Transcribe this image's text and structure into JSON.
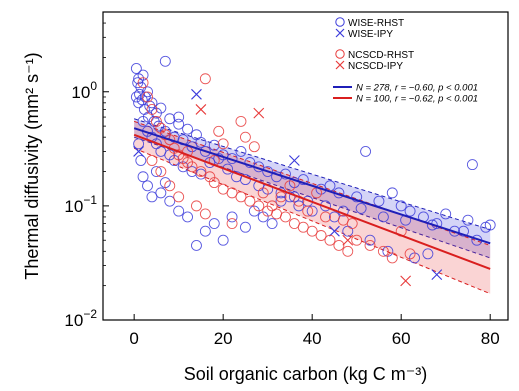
{
  "chart_data": {
    "type": "scatter",
    "xlabel": "Soil organic carbon (kg C m⁻³)",
    "ylabel": "Thermal diffusivity (mm² s⁻¹)",
    "xlim": [
      -7,
      84
    ],
    "ylim": [
      0.01,
      5
    ],
    "yscale": "log",
    "xticks": [
      0,
      20,
      40,
      60,
      80
    ],
    "yticks": [
      0.01,
      0.1,
      1
    ],
    "ytick_labels": [
      [
        "10",
        "−2"
      ],
      [
        "10",
        "−1"
      ],
      [
        "10",
        "0"
      ]
    ],
    "legend": {
      "placement": "top-right",
      "markers": [
        {
          "label": "WISE-RHST",
          "marker": "circle",
          "color": "#3b3bdb"
        },
        {
          "label": "WISE-IPY",
          "marker": "cross",
          "color": "#3b3bdb"
        },
        {
          "label": "NCSCD-RHST",
          "marker": "circle",
          "color": "#e83b3b"
        },
        {
          "label": "NCSCD-IPY",
          "marker": "cross",
          "color": "#e83b3b"
        }
      ],
      "lines": [
        {
          "label": "N = 278, r = −0.60, p < 0.001",
          "color": "#1f1fb8"
        },
        {
          "label": "N = 100, r = −0.62, p < 0.001",
          "color": "#d91f1f"
        }
      ]
    },
    "series": [
      {
        "name": "WISE-RHST",
        "marker": "circle",
        "color": "#3b3bdb",
        "points": [
          [
            0.5,
            1.6
          ],
          [
            0.8,
            1.2
          ],
          [
            1,
            1.3
          ],
          [
            1.2,
            0.95
          ],
          [
            1.5,
            1.1
          ],
          [
            1.8,
            0.85
          ],
          [
            2,
            1.4
          ],
          [
            2.3,
            0.7
          ],
          [
            2.5,
            0.9
          ],
          [
            3,
            1.0
          ],
          [
            3.2,
            0.6
          ],
          [
            3.5,
            0.75
          ],
          [
            4,
            0.8
          ],
          [
            4.5,
            0.55
          ],
          [
            5,
            0.65
          ],
          [
            5.5,
            0.5
          ],
          [
            6,
            0.72
          ],
          [
            7,
            0.45
          ],
          [
            8,
            0.58
          ],
          [
            9,
            0.4
          ],
          [
            10,
            0.52
          ],
          [
            11,
            0.38
          ],
          [
            12,
            0.47
          ],
          [
            13,
            0.33
          ],
          [
            14,
            0.42
          ],
          [
            15,
            0.36
          ],
          [
            16,
            0.3
          ],
          [
            18,
            0.34
          ],
          [
            20,
            0.28
          ],
          [
            22,
            0.26
          ],
          [
            24,
            0.3
          ],
          [
            26,
            0.24
          ],
          [
            28,
            0.22
          ],
          [
            30,
            0.2
          ],
          [
            32,
            0.18
          ],
          [
            34,
            0.19
          ],
          [
            36,
            0.16
          ],
          [
            38,
            0.17
          ],
          [
            42,
            0.14
          ],
          [
            44,
            0.15
          ],
          [
            46,
            0.13
          ],
          [
            50,
            0.12
          ],
          [
            52,
            0.3
          ],
          [
            55,
            0.11
          ],
          [
            58,
            0.13
          ],
          [
            60,
            0.1
          ],
          [
            62,
            0.09
          ],
          [
            65,
            0.08
          ],
          [
            68,
            0.07
          ],
          [
            70,
            0.085
          ],
          [
            72,
            0.06
          ],
          [
            75,
            0.075
          ],
          [
            77,
            0.05
          ],
          [
            79,
            0.065
          ],
          [
            1,
            0.35
          ],
          [
            1.5,
            0.25
          ],
          [
            2,
            0.18
          ],
          [
            3,
            0.15
          ],
          [
            4,
            0.12
          ],
          [
            5,
            0.2
          ],
          [
            6,
            0.13
          ],
          [
            7,
            0.16
          ],
          [
            8,
            0.11
          ],
          [
            10,
            0.09
          ],
          [
            12,
            0.08
          ],
          [
            14,
            0.045
          ],
          [
            16,
            0.06
          ],
          [
            18,
            0.07
          ],
          [
            20,
            0.05
          ],
          [
            22,
            0.08
          ],
          [
            25,
            0.065
          ],
          [
            27,
            0.09
          ],
          [
            29,
            0.08
          ],
          [
            31,
            0.07
          ],
          [
            33,
            0.11
          ],
          [
            35,
            0.12
          ],
          [
            37,
            0.1
          ],
          [
            40,
            0.09
          ],
          [
            45,
            0.08
          ],
          [
            48,
            0.06
          ],
          [
            53,
            0.05
          ],
          [
            57,
            0.04
          ],
          [
            63,
            0.035
          ],
          [
            66,
            0.038
          ],
          [
            0.5,
            0.9
          ],
          [
            1,
            0.8
          ],
          [
            2,
            0.55
          ],
          [
            3,
            0.45
          ],
          [
            4,
            0.4
          ],
          [
            5,
            0.35
          ],
          [
            6,
            0.3
          ],
          [
            7,
            1.85
          ],
          [
            8,
            0.28
          ],
          [
            9,
            0.25
          ],
          [
            10,
            0.6
          ],
          [
            11,
            0.22
          ],
          [
            13,
            0.2
          ],
          [
            15,
            0.19
          ],
          [
            17,
            0.24
          ],
          [
            19,
            0.26
          ],
          [
            21,
            0.21
          ],
          [
            23,
            0.18
          ],
          [
            25,
            0.17
          ],
          [
            28,
            0.15
          ],
          [
            30,
            0.14
          ],
          [
            33,
            0.13
          ],
          [
            36,
            0.12
          ],
          [
            39,
            0.11
          ],
          [
            43,
            0.1
          ],
          [
            47,
            0.09
          ],
          [
            51,
            0.095
          ],
          [
            56,
            0.08
          ],
          [
            61,
            0.075
          ],
          [
            67,
            0.068
          ],
          [
            74,
            0.06
          ],
          [
            76,
            0.23
          ],
          [
            80,
            0.068
          ]
        ]
      },
      {
        "name": "WISE-IPY",
        "marker": "cross",
        "color": "#3b3bdb",
        "points": [
          [
            14,
            0.95
          ],
          [
            36,
            0.25
          ],
          [
            45,
            0.06
          ],
          [
            68,
            0.025
          ],
          [
            1,
            0.3
          ]
        ]
      },
      {
        "name": "NCSCD-RHST",
        "marker": "circle",
        "color": "#e83b3b",
        "points": [
          [
            2,
            1.2
          ],
          [
            3,
            0.9
          ],
          [
            4,
            0.7
          ],
          [
            5,
            0.55
          ],
          [
            6,
            0.48
          ],
          [
            7,
            0.42
          ],
          [
            8,
            0.38
          ],
          [
            9,
            0.32
          ],
          [
            10,
            0.28
          ],
          [
            11,
            0.26
          ],
          [
            12,
            0.24
          ],
          [
            13,
            0.22
          ],
          [
            15,
            0.2
          ],
          [
            16,
            1.3
          ],
          [
            17,
            0.18
          ],
          [
            18,
            0.16
          ],
          [
            19,
            0.45
          ],
          [
            20,
            0.14
          ],
          [
            22,
            0.13
          ],
          [
            24,
            0.12
          ],
          [
            26,
            0.11
          ],
          [
            28,
            0.1
          ],
          [
            30,
            0.09
          ],
          [
            32,
            0.085
          ],
          [
            34,
            0.08
          ],
          [
            36,
            0.07
          ],
          [
            38,
            0.065
          ],
          [
            40,
            0.06
          ],
          [
            42,
            0.055
          ],
          [
            44,
            0.05
          ],
          [
            46,
            0.045
          ],
          [
            48,
            0.04
          ],
          [
            50,
            0.05
          ],
          [
            53,
            0.045
          ],
          [
            56,
            0.04
          ],
          [
            58,
            0.035
          ],
          [
            60,
            0.06
          ],
          [
            62,
            0.038
          ],
          [
            4,
            0.25
          ],
          [
            6,
            0.2
          ],
          [
            8,
            0.15
          ],
          [
            10,
            0.12
          ],
          [
            12,
            0.3
          ],
          [
            14,
            0.1
          ],
          [
            16,
            0.085
          ],
          [
            18,
            0.25
          ],
          [
            20,
            0.35
          ],
          [
            22,
            0.07
          ],
          [
            24,
            0.55
          ],
          [
            25,
            0.4
          ],
          [
            27,
            0.33
          ],
          [
            29,
            0.13
          ],
          [
            31,
            0.1
          ],
          [
            33,
            0.12
          ],
          [
            35,
            0.15
          ],
          [
            37,
            0.11
          ],
          [
            39,
            0.09
          ],
          [
            41,
            0.13
          ],
          [
            43,
            0.08
          ],
          [
            47,
            0.075
          ],
          [
            49,
            0.07
          ]
        ]
      },
      {
        "name": "NCSCD-IPY",
        "marker": "cross",
        "color": "#e83b3b",
        "points": [
          [
            28,
            0.65
          ],
          [
            15,
            0.7
          ],
          [
            48,
            0.05
          ],
          [
            61,
            0.022
          ]
        ]
      }
    ],
    "fits": [
      {
        "name": "N = 278, r = −0.60, p < 0.001",
        "color": "#1f1fb8",
        "band_color": "#3b3bdb",
        "x": [
          0,
          80
        ],
        "y": [
          0.48,
          0.047
        ],
        "band_upper": [
          0.58,
          0.062
        ],
        "band_lower": [
          0.4,
          0.035
        ]
      },
      {
        "name": "N = 100, r = −0.62, p < 0.001",
        "color": "#d91f1f",
        "band_color": "#e83b3b",
        "x": [
          0,
          80
        ],
        "y": [
          0.42,
          0.028
        ],
        "band_upper": [
          0.55,
          0.045
        ],
        "band_lower": [
          0.32,
          0.017
        ]
      }
    ]
  }
}
